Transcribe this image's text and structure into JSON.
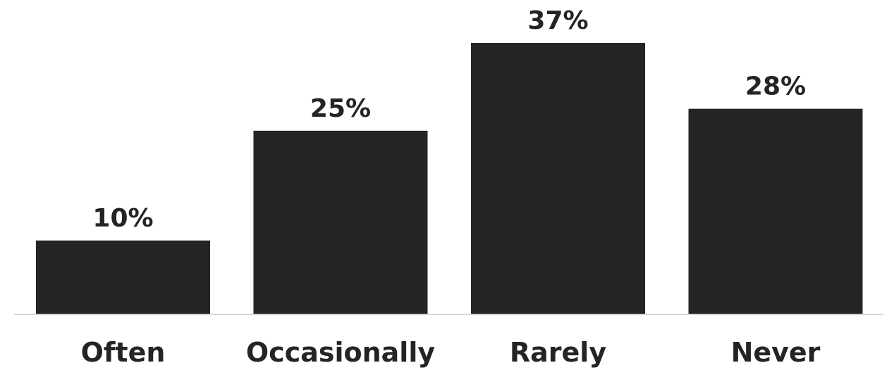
{
  "chart_data": {
    "type": "bar",
    "categories": [
      "Often",
      "Occasionally",
      "Rarely",
      "Never"
    ],
    "values": [
      10,
      25,
      37,
      28
    ],
    "value_labels": [
      "10%",
      "25%",
      "37%",
      "28%"
    ],
    "title": "",
    "xlabel": "",
    "ylabel": "",
    "unit": "%",
    "ylim": [
      0,
      37
    ],
    "grid": false,
    "legend": "none",
    "bar_color": "#242424",
    "baseline_color": "#d4d4d4"
  }
}
